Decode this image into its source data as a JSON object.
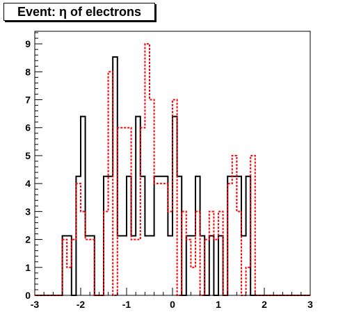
{
  "chart_data": {
    "type": "step",
    "title": "Event: η of electrons",
    "xlabel": "",
    "ylabel": "",
    "xlim": [
      -3,
      3
    ],
    "ylim": [
      0,
      9.45
    ],
    "x_ticks": [
      -3,
      -2,
      -1,
      0,
      1,
      2,
      3
    ],
    "y_ticks": [
      0,
      1,
      2,
      3,
      4,
      5,
      6,
      7,
      8,
      9
    ],
    "grid": false,
    "legend": "none",
    "bin_width": 0.1,
    "series": [
      {
        "style": "solid",
        "color": "#000000",
        "bins": [
          {
            "x0": -3.0,
            "y": 0
          },
          {
            "x0": -2.9,
            "y": 0
          },
          {
            "x0": -2.8,
            "y": 0
          },
          {
            "x0": -2.7,
            "y": 0
          },
          {
            "x0": -2.6,
            "y": 0
          },
          {
            "x0": -2.5,
            "y": 0
          },
          {
            "x0": -2.4,
            "y": 2.13
          },
          {
            "x0": -2.3,
            "y": 2.13
          },
          {
            "x0": -2.2,
            "y": 0
          },
          {
            "x0": -2.1,
            "y": 4.26
          },
          {
            "x0": -2.0,
            "y": 6.4
          },
          {
            "x0": -1.9,
            "y": 2.13
          },
          {
            "x0": -1.8,
            "y": 2.13
          },
          {
            "x0": -1.7,
            "y": 0
          },
          {
            "x0": -1.6,
            "y": 0
          },
          {
            "x0": -1.5,
            "y": 4.26
          },
          {
            "x0": -1.4,
            "y": 4.26
          },
          {
            "x0": -1.3,
            "y": 8.53
          },
          {
            "x0": -1.2,
            "y": 2.13
          },
          {
            "x0": -1.1,
            "y": 2.13
          },
          {
            "x0": -1.0,
            "y": 4.26
          },
          {
            "x0": -0.9,
            "y": 2.13
          },
          {
            "x0": -0.8,
            "y": 6.4
          },
          {
            "x0": -0.7,
            "y": 4.26
          },
          {
            "x0": -0.6,
            "y": 2.13
          },
          {
            "x0": -0.5,
            "y": 2.13
          },
          {
            "x0": -0.4,
            "y": 4.26
          },
          {
            "x0": -0.3,
            "y": 4.26
          },
          {
            "x0": -0.2,
            "y": 4.26
          },
          {
            "x0": -0.1,
            "y": 2.13
          },
          {
            "x0": 0.0,
            "y": 6.4
          },
          {
            "x0": 0.1,
            "y": 4.26
          },
          {
            "x0": 0.2,
            "y": 0
          },
          {
            "x0": 0.3,
            "y": 2.13
          },
          {
            "x0": 0.4,
            "y": 2.13
          },
          {
            "x0": 0.5,
            "y": 4.26
          },
          {
            "x0": 0.6,
            "y": 2.13
          },
          {
            "x0": 0.7,
            "y": 0
          },
          {
            "x0": 0.8,
            "y": 2.13
          },
          {
            "x0": 0.9,
            "y": 0
          },
          {
            "x0": 1.0,
            "y": 2.13
          },
          {
            "x0": 1.1,
            "y": 0
          },
          {
            "x0": 1.2,
            "y": 4.26
          },
          {
            "x0": 1.3,
            "y": 4.26
          },
          {
            "x0": 1.4,
            "y": 4.26
          },
          {
            "x0": 1.5,
            "y": 2.13
          },
          {
            "x0": 1.6,
            "y": 4.26
          },
          {
            "x0": 1.7,
            "y": 0
          },
          {
            "x0": 1.8,
            "y": 0
          },
          {
            "x0": 1.9,
            "y": 0
          },
          {
            "x0": 2.0,
            "y": 0
          },
          {
            "x0": 2.1,
            "y": 0
          },
          {
            "x0": 2.2,
            "y": 0
          },
          {
            "x0": 2.3,
            "y": 0
          },
          {
            "x0": 2.4,
            "y": 0
          },
          {
            "x0": 2.5,
            "y": 0
          },
          {
            "x0": 2.6,
            "y": 0
          },
          {
            "x0": 2.7,
            "y": 0
          },
          {
            "x0": 2.8,
            "y": 0
          },
          {
            "x0": 2.9,
            "y": 0
          }
        ]
      },
      {
        "style": "dashed",
        "color": "#ff0000",
        "bins": [
          {
            "x0": -3.0,
            "y": 0
          },
          {
            "x0": -2.9,
            "y": 0
          },
          {
            "x0": -2.8,
            "y": 0
          },
          {
            "x0": -2.7,
            "y": 0
          },
          {
            "x0": -2.6,
            "y": 0
          },
          {
            "x0": -2.5,
            "y": 0
          },
          {
            "x0": -2.4,
            "y": 2
          },
          {
            "x0": -2.3,
            "y": 1
          },
          {
            "x0": -2.2,
            "y": 2
          },
          {
            "x0": -2.1,
            "y": 4
          },
          {
            "x0": -2.0,
            "y": 3
          },
          {
            "x0": -1.9,
            "y": 2
          },
          {
            "x0": -1.8,
            "y": 2
          },
          {
            "x0": -1.7,
            "y": 0
          },
          {
            "x0": -1.6,
            "y": 0
          },
          {
            "x0": -1.5,
            "y": 3
          },
          {
            "x0": -1.4,
            "y": 8
          },
          {
            "x0": -1.3,
            "y": 0
          },
          {
            "x0": -1.2,
            "y": 6
          },
          {
            "x0": -1.1,
            "y": 6
          },
          {
            "x0": -1.0,
            "y": 6
          },
          {
            "x0": -0.9,
            "y": 2
          },
          {
            "x0": -0.8,
            "y": 2
          },
          {
            "x0": -0.7,
            "y": 6
          },
          {
            "x0": -0.6,
            "y": 9
          },
          {
            "x0": -0.5,
            "y": 7
          },
          {
            "x0": -0.4,
            "y": 4
          },
          {
            "x0": -0.3,
            "y": 4
          },
          {
            "x0": -0.2,
            "y": 4
          },
          {
            "x0": -0.1,
            "y": 3
          },
          {
            "x0": 0.0,
            "y": 7
          },
          {
            "x0": 0.1,
            "y": 0
          },
          {
            "x0": 0.2,
            "y": 3
          },
          {
            "x0": 0.3,
            "y": 2
          },
          {
            "x0": 0.4,
            "y": 1
          },
          {
            "x0": 0.5,
            "y": 3
          },
          {
            "x0": 0.6,
            "y": 0
          },
          {
            "x0": 0.7,
            "y": 2
          },
          {
            "x0": 0.8,
            "y": 3
          },
          {
            "x0": 0.9,
            "y": 2
          },
          {
            "x0": 1.0,
            "y": 3
          },
          {
            "x0": 1.1,
            "y": 0
          },
          {
            "x0": 1.2,
            "y": 4
          },
          {
            "x0": 1.3,
            "y": 5
          },
          {
            "x0": 1.4,
            "y": 3
          },
          {
            "x0": 1.5,
            "y": 0
          },
          {
            "x0": 1.6,
            "y": 1
          },
          {
            "x0": 1.7,
            "y": 5
          },
          {
            "x0": 1.8,
            "y": 0
          },
          {
            "x0": 1.9,
            "y": 0
          },
          {
            "x0": 2.0,
            "y": 0
          },
          {
            "x0": 2.1,
            "y": 0
          },
          {
            "x0": 2.2,
            "y": 0
          },
          {
            "x0": 2.3,
            "y": 0
          },
          {
            "x0": 2.4,
            "y": 0
          },
          {
            "x0": 2.5,
            "y": 0
          },
          {
            "x0": 2.6,
            "y": 0
          },
          {
            "x0": 2.7,
            "y": 0
          },
          {
            "x0": 2.8,
            "y": 0
          },
          {
            "x0": 2.9,
            "y": 0
          }
        ]
      }
    ]
  }
}
